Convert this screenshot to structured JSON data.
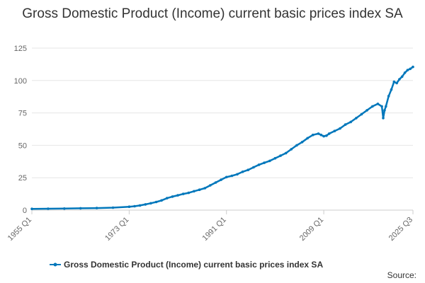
{
  "chart_data": {
    "type": "line",
    "title": "Gross Domestic Product (Income) current basic prices index SA",
    "xlabel": "",
    "ylabel": "",
    "ylim": [
      0,
      125
    ],
    "yticks": [
      "0",
      "25",
      "50",
      "75",
      "100",
      "125"
    ],
    "xticks": [
      "1955 Q1",
      "1973 Q1",
      "1991 Q1",
      "2009 Q1",
      "2025 Q3"
    ],
    "grid": true,
    "legend_position": "bottom",
    "series": [
      {
        "name": "Gross Domestic Product (Income) current basic prices index SA",
        "color": "#0077bb",
        "x": [
          "1955 Q1",
          "1958 Q1",
          "1961 Q1",
          "1964 Q1",
          "1967 Q1",
          "1970 Q1",
          "1973 Q1",
          "1974 Q1",
          "1975 Q1",
          "1976 Q1",
          "1977 Q1",
          "1978 Q1",
          "1979 Q1",
          "1980 Q1",
          "1981 Q1",
          "1982 Q1",
          "1983 Q1",
          "1984 Q1",
          "1985 Q1",
          "1986 Q1",
          "1987 Q1",
          "1988 Q1",
          "1989 Q1",
          "1990 Q1",
          "1991 Q1",
          "1992 Q1",
          "1993 Q1",
          "1994 Q1",
          "1995 Q1",
          "1996 Q1",
          "1997 Q1",
          "1998 Q1",
          "1999 Q1",
          "2000 Q1",
          "2001 Q1",
          "2002 Q1",
          "2003 Q1",
          "2004 Q1",
          "2005 Q1",
          "2006 Q1",
          "2007 Q1",
          "2008 Q1",
          "2008 Q3",
          "2009 Q1",
          "2009 Q3",
          "2010 Q1",
          "2011 Q1",
          "2012 Q1",
          "2013 Q1",
          "2014 Q1",
          "2015 Q1",
          "2016 Q1",
          "2017 Q1",
          "2018 Q1",
          "2019 Q1",
          "2019 Q4",
          "2020 Q1",
          "2020 Q2",
          "2020 Q3",
          "2021 Q1",
          "2021 Q3",
          "2022 Q1",
          "2022 Q3",
          "2023 Q1",
          "2023 Q3",
          "2024 Q1",
          "2024 Q3",
          "2025 Q1",
          "2025 Q3"
        ],
        "values": [
          1,
          1.1,
          1.2,
          1.4,
          1.6,
          1.9,
          2.6,
          3,
          3.6,
          4.4,
          5.3,
          6.3,
          7.5,
          9.2,
          10.4,
          11.4,
          12.5,
          13.3,
          14.6,
          15.7,
          16.9,
          19.1,
          21.3,
          23.4,
          25.5,
          26.5,
          27.7,
          29.6,
          31,
          33,
          35,
          36.5,
          38,
          40,
          42,
          44,
          47,
          50,
          52.5,
          55.5,
          58,
          59,
          58,
          57,
          57.5,
          59,
          61,
          63,
          66,
          68,
          71,
          74,
          77,
          80,
          82,
          80,
          71,
          77,
          80,
          88,
          93,
          99,
          98,
          101,
          103,
          106,
          108,
          109,
          110.5
        ]
      }
    ]
  },
  "legend": {
    "label": "Gross Domestic Product (Income) current basic prices index SA"
  },
  "source": "Source:"
}
